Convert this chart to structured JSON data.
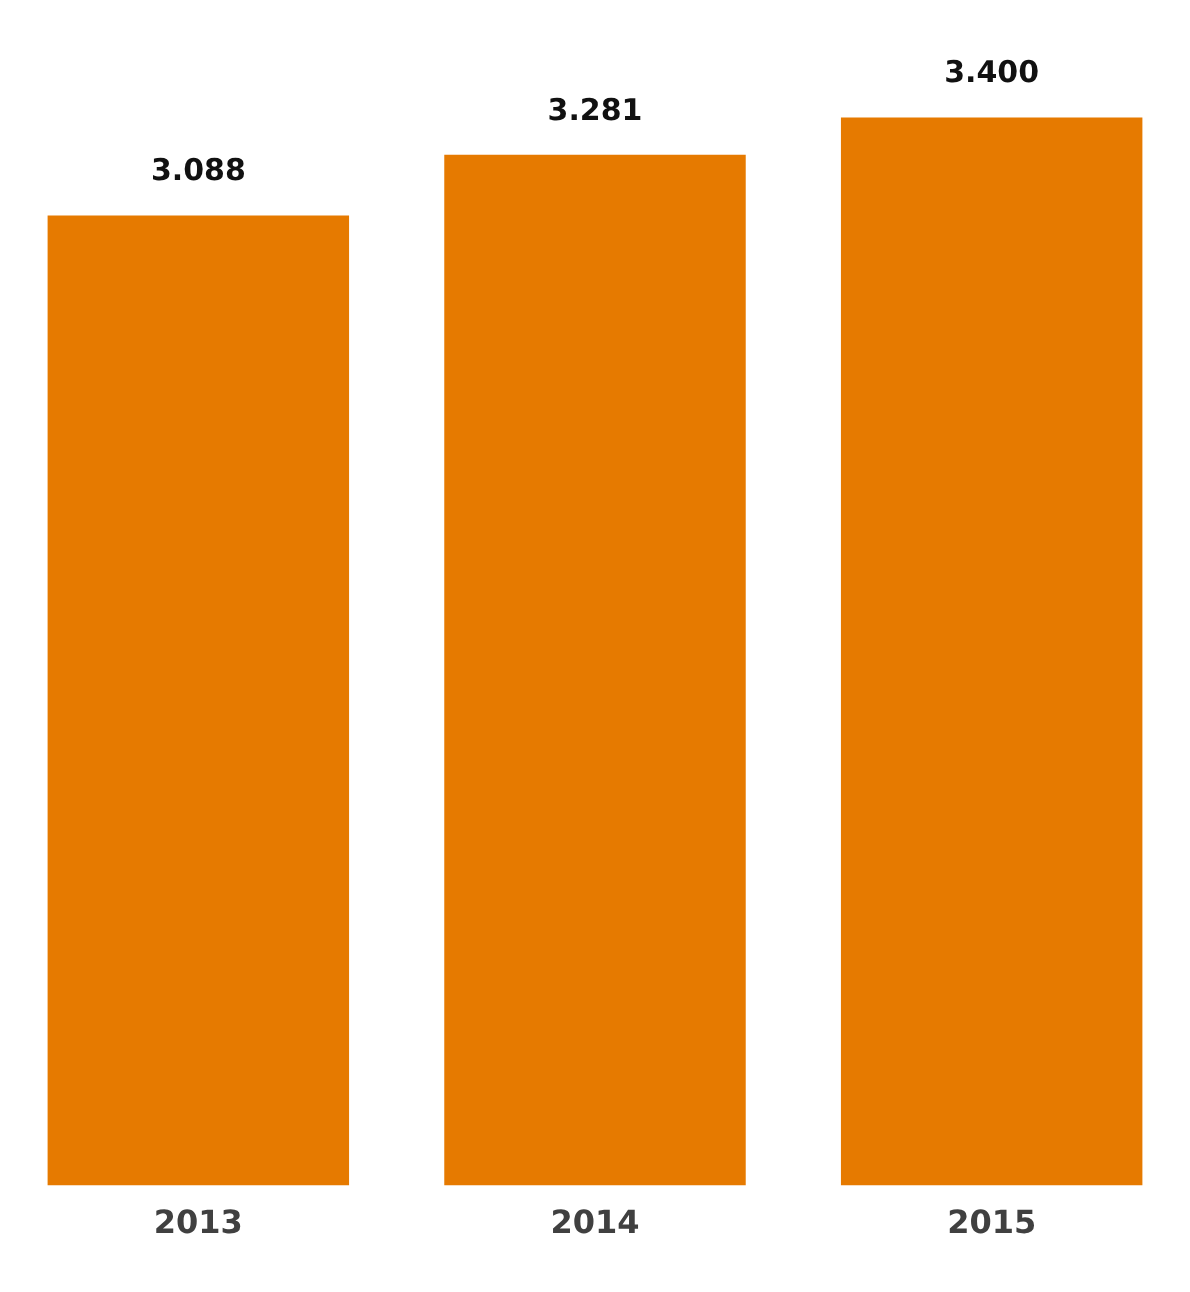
{
  "chart_data": {
    "type": "bar",
    "categories": [
      "2013",
      "2014",
      "2015"
    ],
    "values": [
      3.088,
      3.281,
      3.4
    ],
    "value_labels": [
      "3.088",
      "3.281",
      "3.400"
    ],
    "color": "#e67a00",
    "grid": false,
    "legend": false,
    "tick_labels": "x"
  }
}
